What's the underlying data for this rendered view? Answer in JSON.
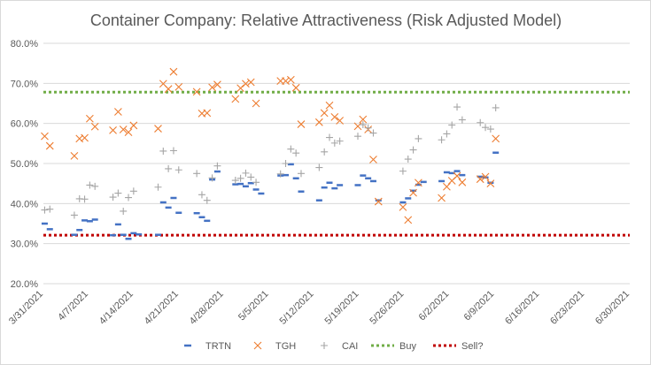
{
  "chart_data": {
    "type": "scatter",
    "title": "Container Company: Relative Attractiveness (Risk Adjusted Model)",
    "xlabel": "",
    "ylabel": "",
    "x_ticks": [
      "3/31/2021",
      "4/7/2021",
      "4/14/2021",
      "4/21/2021",
      "4/28/2021",
      "5/5/2021",
      "5/12/2021",
      "5/19/2021",
      "5/26/2021",
      "6/2/2021",
      "6/9/2021",
      "6/16/2021",
      "6/23/2021",
      "6/30/2021"
    ],
    "y_ticks": [
      "20.0%",
      "30.0%",
      "40.0%",
      "50.0%",
      "60.0%",
      "70.0%",
      "80.0%"
    ],
    "xlim": [
      0,
      91
    ],
    "ylim": [
      20,
      80
    ],
    "gridlines": true,
    "legend_position": "bottom",
    "series": [
      {
        "name": "TRTN",
        "marker": "dash",
        "color": "#4472c4",
        "points": [
          [
            0.2,
            35.0
          ],
          [
            1.0,
            33.6
          ],
          [
            4.8,
            32.2
          ],
          [
            5.6,
            33.4
          ],
          [
            6.4,
            35.8
          ],
          [
            7.2,
            35.6
          ],
          [
            8.0,
            36.0
          ],
          [
            10.8,
            32.1
          ],
          [
            11.6,
            34.8
          ],
          [
            12.4,
            32.2
          ],
          [
            13.2,
            31.2
          ],
          [
            14.0,
            32.6
          ],
          [
            14.8,
            32.3
          ],
          [
            17.8,
            32.2
          ],
          [
            18.6,
            40.3
          ],
          [
            19.4,
            39.0
          ],
          [
            20.2,
            41.4
          ],
          [
            21.0,
            37.7
          ],
          [
            23.8,
            37.6
          ],
          [
            24.6,
            36.6
          ],
          [
            25.4,
            35.7
          ],
          [
            26.2,
            46.0
          ],
          [
            27.0,
            48.0
          ],
          [
            29.8,
            44.8
          ],
          [
            30.6,
            44.9
          ],
          [
            31.4,
            44.3
          ],
          [
            32.2,
            45.1
          ],
          [
            33.0,
            43.5
          ],
          [
            33.8,
            42.5
          ],
          [
            36.8,
            47.0
          ],
          [
            37.6,
            47.1
          ],
          [
            38.4,
            49.8
          ],
          [
            39.2,
            46.3
          ],
          [
            40.0,
            43.0
          ],
          [
            42.8,
            40.8
          ],
          [
            43.6,
            44.0
          ],
          [
            44.4,
            45.2
          ],
          [
            45.2,
            43.8
          ],
          [
            46.0,
            44.6
          ],
          [
            48.8,
            44.6
          ],
          [
            49.6,
            47.0
          ],
          [
            50.4,
            46.3
          ],
          [
            51.2,
            45.6
          ],
          [
            52.0,
            40.8
          ],
          [
            55.8,
            40.3
          ],
          [
            56.6,
            41.3
          ],
          [
            57.4,
            43.2
          ],
          [
            58.2,
            44.7
          ],
          [
            59.0,
            45.4
          ],
          [
            61.8,
            45.6
          ],
          [
            62.6,
            47.8
          ],
          [
            63.4,
            47.6
          ],
          [
            64.2,
            48.1
          ],
          [
            65.0,
            47.1
          ],
          [
            67.8,
            46.7
          ],
          [
            68.6,
            46.5
          ],
          [
            69.4,
            45.2
          ],
          [
            70.2,
            52.7
          ]
        ]
      },
      {
        "name": "TGH",
        "marker": "x",
        "color": "#ed7d31",
        "points": [
          [
            0.2,
            56.8
          ],
          [
            1.0,
            54.4
          ],
          [
            4.8,
            51.9
          ],
          [
            5.6,
            56.2
          ],
          [
            6.4,
            56.4
          ],
          [
            7.2,
            61.2
          ],
          [
            8.0,
            59.2
          ],
          [
            10.8,
            58.3
          ],
          [
            11.6,
            62.9
          ],
          [
            12.4,
            58.5
          ],
          [
            13.2,
            57.8
          ],
          [
            14.0,
            59.5
          ],
          [
            17.8,
            58.7
          ],
          [
            18.6,
            69.9
          ],
          [
            19.4,
            68.6
          ],
          [
            20.2,
            72.9
          ],
          [
            21.0,
            69.1
          ],
          [
            23.8,
            67.9
          ],
          [
            24.6,
            62.5
          ],
          [
            25.4,
            62.6
          ],
          [
            26.2,
            69.0
          ],
          [
            27.0,
            69.7
          ],
          [
            29.8,
            66.1
          ],
          [
            30.6,
            68.8
          ],
          [
            31.4,
            69.9
          ],
          [
            32.2,
            70.3
          ],
          [
            33.0,
            65.0
          ],
          [
            36.8,
            70.6
          ],
          [
            37.6,
            70.6
          ],
          [
            38.4,
            70.9
          ],
          [
            39.2,
            68.9
          ],
          [
            40.0,
            59.8
          ],
          [
            42.8,
            60.3
          ],
          [
            43.6,
            62.6
          ],
          [
            44.4,
            64.5
          ],
          [
            45.2,
            61.6
          ],
          [
            46.0,
            60.7
          ],
          [
            48.8,
            59.3
          ],
          [
            49.6,
            61.0
          ],
          [
            50.4,
            58.5
          ],
          [
            51.2,
            51.0
          ],
          [
            52.0,
            40.5
          ],
          [
            55.8,
            39.1
          ],
          [
            56.6,
            35.9
          ],
          [
            57.4,
            42.7
          ],
          [
            58.2,
            45.2
          ],
          [
            61.8,
            41.4
          ],
          [
            62.6,
            44.2
          ],
          [
            63.4,
            45.7
          ],
          [
            64.2,
            46.9
          ],
          [
            65.0,
            45.3
          ],
          [
            67.8,
            46.1
          ],
          [
            68.6,
            46.7
          ],
          [
            69.4,
            45.0
          ],
          [
            70.2,
            56.2
          ]
        ]
      },
      {
        "name": "CAI",
        "marker": "plus",
        "color": "#a5a5a5",
        "points": [
          [
            0.2,
            38.4
          ],
          [
            1.0,
            38.6
          ],
          [
            4.8,
            37.1
          ],
          [
            5.6,
            41.2
          ],
          [
            6.4,
            41.1
          ],
          [
            7.2,
            44.6
          ],
          [
            8.0,
            44.3
          ],
          [
            10.8,
            41.6
          ],
          [
            11.6,
            42.6
          ],
          [
            12.4,
            38.1
          ],
          [
            13.2,
            41.5
          ],
          [
            14.0,
            43.1
          ],
          [
            17.8,
            44.1
          ],
          [
            18.6,
            53.1
          ],
          [
            19.4,
            48.7
          ],
          [
            20.2,
            53.2
          ],
          [
            21.0,
            48.4
          ],
          [
            23.8,
            47.5
          ],
          [
            24.6,
            42.2
          ],
          [
            25.4,
            40.8
          ],
          [
            26.2,
            46.4
          ],
          [
            27.0,
            49.4
          ],
          [
            29.8,
            45.8
          ],
          [
            30.6,
            46.3
          ],
          [
            31.4,
            47.6
          ],
          [
            32.2,
            46.6
          ],
          [
            33.0,
            45.3
          ],
          [
            36.8,
            47.4
          ],
          [
            37.6,
            50.0
          ],
          [
            38.4,
            53.6
          ],
          [
            39.2,
            52.6
          ],
          [
            40.0,
            47.5
          ],
          [
            42.8,
            49.0
          ],
          [
            43.6,
            52.9
          ],
          [
            44.4,
            56.5
          ],
          [
            45.2,
            55.1
          ],
          [
            46.0,
            55.6
          ],
          [
            48.8,
            56.8
          ],
          [
            49.6,
            59.7
          ],
          [
            50.4,
            58.9
          ],
          [
            51.2,
            57.6
          ],
          [
            55.8,
            48.1
          ],
          [
            56.6,
            51.1
          ],
          [
            57.4,
            53.4
          ],
          [
            58.2,
            56.2
          ],
          [
            61.8,
            55.9
          ],
          [
            62.6,
            57.4
          ],
          [
            63.4,
            59.6
          ],
          [
            64.2,
            64.1
          ],
          [
            65.0,
            60.9
          ],
          [
            67.8,
            60.2
          ],
          [
            68.6,
            59.0
          ],
          [
            69.4,
            58.6
          ],
          [
            70.2,
            63.9
          ]
        ]
      },
      {
        "name": "Buy",
        "line": "dotted",
        "color": "#70ad47",
        "value": 67.8
      },
      {
        "name": "Sell?",
        "line": "dotted",
        "color": "#c00000",
        "value": 32.1
      }
    ]
  }
}
